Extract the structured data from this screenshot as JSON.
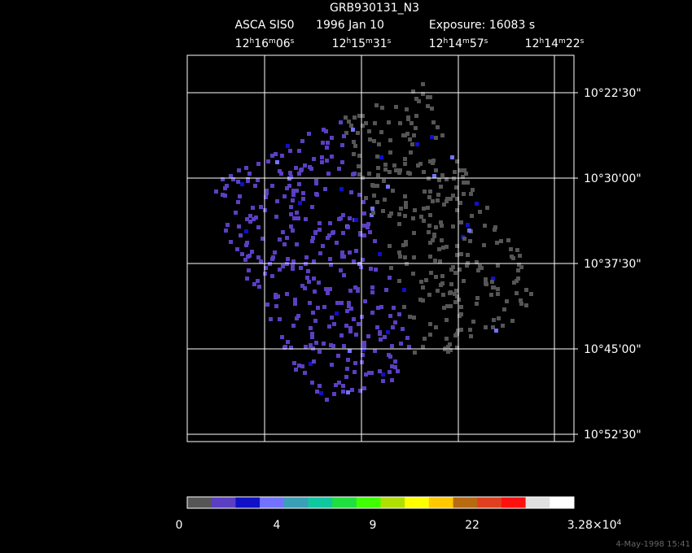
{
  "title": "GRB930131_N3",
  "subtitle": {
    "instrument": "ASCA SIS0",
    "date": "1996 Jan 10",
    "exposure": "Exposure: 16083 s"
  },
  "ra_labels": [
    [
      "12",
      "h",
      "16",
      "m",
      "06",
      "s"
    ],
    [
      "12",
      "h",
      "15",
      "m",
      "31",
      "s"
    ],
    [
      "12",
      "h",
      "14",
      "m",
      "57",
      "s"
    ],
    [
      "12",
      "h",
      "14",
      "m",
      "22",
      "s"
    ]
  ],
  "dec_labels": [
    "10°22'30\"",
    "10°30'00\"",
    "10°37'30\"",
    "10°45'00\"",
    "10°52'30\""
  ],
  "colorbar": {
    "colors": [
      "#555555",
      "#5b3fc2",
      "#1010c8",
      "#7272ff",
      "#3aa0b8",
      "#10c8a0",
      "#20e040",
      "#40ff00",
      "#b0e000",
      "#ffff00",
      "#ffc800",
      "#b86a10",
      "#e04020",
      "#ff1010",
      "#e0e0e0",
      "#ffffff"
    ],
    "labels": [
      [
        "0"
      ],
      [
        "4"
      ],
      [
        "9"
      ],
      [
        "22"
      ],
      [
        "3.28×10",
        "4"
      ]
    ]
  },
  "footer": "4-May-1998 15:41"
}
